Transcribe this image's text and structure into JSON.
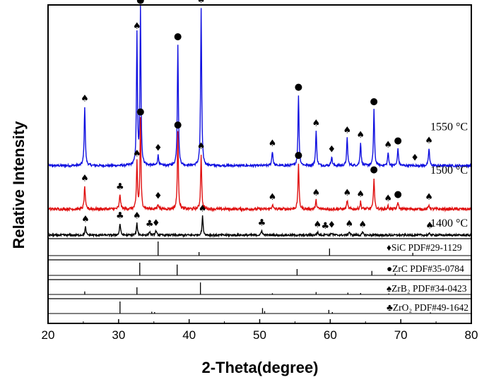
{
  "chart_data": {
    "type": "line",
    "xlabel": "2-Theta(degree)",
    "ylabel": "Relative Intensity",
    "xlim": [
      20,
      80
    ],
    "xticks": [
      20,
      30,
      40,
      50,
      60,
      70,
      80
    ],
    "grid": false,
    "legend_symbols": {
      "diamond": "♦",
      "circle": "●",
      "spade": "♠",
      "club": "♣"
    },
    "series": [
      {
        "label": "1550 °C",
        "color": "#1010e0",
        "baseline": 0.24,
        "noise": 0.004,
        "peaks": [
          {
            "x": 25.2,
            "h": 0.205,
            "w": 0.18,
            "m": "spade"
          },
          {
            "x": 32.6,
            "h": 0.455,
            "w": 0.16,
            "m": "spade"
          },
          {
            "x": 33.1,
            "h": 0.545,
            "w": 0.16,
            "m": "circle"
          },
          {
            "x": 35.6,
            "h": 0.035,
            "w": 0.2,
            "m": "diamond"
          },
          {
            "x": 38.4,
            "h": 0.42,
            "w": 0.17,
            "m": "circle"
          },
          {
            "x": 41.7,
            "h": 0.545,
            "w": 0.17,
            "m": "spade"
          },
          {
            "x": 51.8,
            "h": 0.05,
            "w": 0.2,
            "m": "spade"
          },
          {
            "x": 55.5,
            "h": 0.245,
            "w": 0.17,
            "m": "circle"
          },
          {
            "x": 58.0,
            "h": 0.12,
            "w": 0.18,
            "m": "spade"
          },
          {
            "x": 60.2,
            "h": 0.03,
            "w": 0.2,
            "m": "diamond"
          },
          {
            "x": 62.4,
            "h": 0.095,
            "w": 0.18,
            "m": "spade"
          },
          {
            "x": 64.3,
            "h": 0.08,
            "w": 0.18,
            "m": "spade"
          },
          {
            "x": 66.2,
            "h": 0.195,
            "w": 0.17,
            "m": "circle"
          },
          {
            "x": 68.2,
            "h": 0.045,
            "w": 0.18,
            "m": "spade"
          },
          {
            "x": 69.6,
            "h": 0.06,
            "w": 0.18,
            "m": "circle"
          },
          {
            "x": 72.0,
            "h": 0.0,
            "w": 0.2,
            "m": "diamond"
          },
          {
            "x": 74.0,
            "h": 0.06,
            "w": 0.18,
            "m": "spade"
          }
        ]
      },
      {
        "label": "1500 °C",
        "color": "#e01010",
        "baseline": 0.09,
        "noise": 0.005,
        "peaks": [
          {
            "x": 25.2,
            "h": 0.08,
            "w": 0.18,
            "m": "spade"
          },
          {
            "x": 30.2,
            "h": 0.05,
            "w": 0.2,
            "m": "club"
          },
          {
            "x": 32.6,
            "h": 0.165,
            "w": 0.16,
            "m": "spade"
          },
          {
            "x": 33.1,
            "h": 0.31,
            "w": 0.16,
            "m": "circle"
          },
          {
            "x": 35.6,
            "h": 0.018,
            "w": 0.2,
            "m": "diamond"
          },
          {
            "x": 38.4,
            "h": 0.265,
            "w": 0.17,
            "m": "circle"
          },
          {
            "x": 41.7,
            "h": 0.19,
            "w": 0.17,
            "m": "spade"
          },
          {
            "x": 51.8,
            "h": 0.015,
            "w": 0.2,
            "m": "spade"
          },
          {
            "x": 55.5,
            "h": 0.16,
            "w": 0.17,
            "m": "circle"
          },
          {
            "x": 58.0,
            "h": 0.03,
            "w": 0.18,
            "m": "spade"
          },
          {
            "x": 62.4,
            "h": 0.03,
            "w": 0.18,
            "m": "spade"
          },
          {
            "x": 64.3,
            "h": 0.025,
            "w": 0.18,
            "m": "spade"
          },
          {
            "x": 66.2,
            "h": 0.11,
            "w": 0.17,
            "m": "circle"
          },
          {
            "x": 68.2,
            "h": 0.01,
            "w": 0.18,
            "m": "spade"
          },
          {
            "x": 69.6,
            "h": 0.025,
            "w": 0.18,
            "m": "circle"
          },
          {
            "x": 74.0,
            "h": 0.015,
            "w": 0.18,
            "m": "spade"
          }
        ]
      },
      {
        "label": "1400 °C",
        "color": "#000000",
        "baseline": 0.0,
        "noise": 0.0035,
        "peaks": [
          {
            "x": 25.3,
            "h": 0.028,
            "w": 0.18,
            "m": "spade"
          },
          {
            "x": 30.2,
            "h": 0.04,
            "w": 0.18,
            "m": "club"
          },
          {
            "x": 32.6,
            "h": 0.04,
            "w": 0.18,
            "m": "spade"
          },
          {
            "x": 34.4,
            "h": 0.012,
            "w": 0.2,
            "m": "club"
          },
          {
            "x": 35.3,
            "h": 0.015,
            "w": 0.2,
            "m": "diamond"
          },
          {
            "x": 41.9,
            "h": 0.065,
            "w": 0.18,
            "m": "spade"
          },
          {
            "x": 50.3,
            "h": 0.016,
            "w": 0.2,
            "m": "club"
          },
          {
            "x": 58.2,
            "h": 0.01,
            "w": 0.2,
            "m": "spade"
          },
          {
            "x": 59.3,
            "h": 0.005,
            "w": 0.2,
            "m": "club"
          },
          {
            "x": 60.2,
            "h": 0.008,
            "w": 0.2,
            "m": "diamond"
          },
          {
            "x": 62.7,
            "h": 0.012,
            "w": 0.2,
            "m": "spade"
          },
          {
            "x": 64.6,
            "h": 0.01,
            "w": 0.2,
            "m": "spade"
          },
          {
            "x": 74.1,
            "h": 0.006,
            "w": 0.2,
            "m": "spade"
          }
        ]
      }
    ],
    "references": [
      {
        "label": "SiC PDF#29-1129",
        "symbol": "diamond",
        "sticks": [
          {
            "x": 35.6,
            "h": 1.0
          },
          {
            "x": 41.4,
            "h": 0.25
          },
          {
            "x": 59.9,
            "h": 0.5
          },
          {
            "x": 71.7,
            "h": 0.2
          }
        ]
      },
      {
        "label": "ZrC PDF#35-0784",
        "symbol": "circle",
        "sticks": [
          {
            "x": 33.0,
            "h": 1.0
          },
          {
            "x": 38.3,
            "h": 0.85
          },
          {
            "x": 55.3,
            "h": 0.5
          },
          {
            "x": 65.9,
            "h": 0.35
          },
          {
            "x": 69.2,
            "h": 0.15
          }
        ]
      },
      {
        "label": "ZrB₂ PDF#34-0423",
        "symbol": "spade",
        "sticks": [
          {
            "x": 25.2,
            "h": 0.25
          },
          {
            "x": 32.6,
            "h": 0.6
          },
          {
            "x": 41.6,
            "h": 1.0
          },
          {
            "x": 51.8,
            "h": 0.1
          },
          {
            "x": 58.0,
            "h": 0.2
          },
          {
            "x": 62.5,
            "h": 0.15
          },
          {
            "x": 64.3,
            "h": 0.12
          },
          {
            "x": 68.3,
            "h": 0.08
          }
        ]
      },
      {
        "label": "ZrO₂ PDF#49-1642",
        "symbol": "club",
        "sticks": [
          {
            "x": 30.2,
            "h": 1.0
          },
          {
            "x": 34.7,
            "h": 0.15
          },
          {
            "x": 35.1,
            "h": 0.12
          },
          {
            "x": 50.4,
            "h": 0.45
          },
          {
            "x": 50.7,
            "h": 0.2
          },
          {
            "x": 59.8,
            "h": 0.3
          },
          {
            "x": 60.3,
            "h": 0.12
          },
          {
            "x": 74.2,
            "h": 0.1
          }
        ]
      }
    ]
  }
}
